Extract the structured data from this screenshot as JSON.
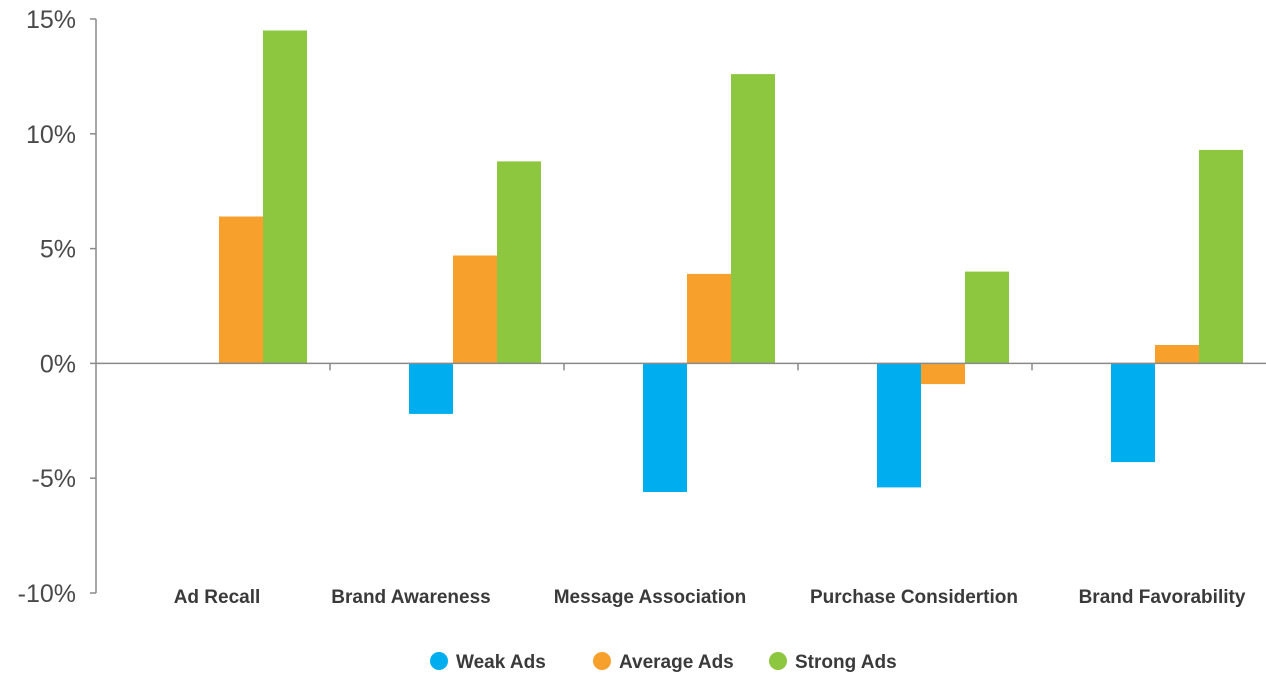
{
  "chart_data": {
    "type": "bar",
    "categories": [
      "Ad Recall",
      "Brand Awareness",
      "Message Association",
      "Purchase Considertion",
      "Brand Favorability"
    ],
    "series": [
      {
        "name": "Weak Ads",
        "color": "#00aeef",
        "values": [
          0,
          -2.2,
          -5.6,
          -5.4,
          -4.3
        ]
      },
      {
        "name": "Average Ads",
        "color": "#f7a12c",
        "values": [
          6.4,
          4.7,
          3.9,
          -0.9,
          0.8
        ]
      },
      {
        "name": "Strong Ads",
        "color": "#8dc63f",
        "values": [
          14.5,
          8.8,
          12.6,
          4.0,
          9.3
        ]
      }
    ],
    "yticks": [
      "15%",
      "10%",
      "5%",
      "0%",
      "-5%",
      "-10%"
    ],
    "ytick_values": [
      15,
      10,
      5,
      0,
      -5,
      -10
    ],
    "ylim": [
      -10,
      15
    ],
    "title": "",
    "xlabel": "",
    "ylabel": "",
    "grid": false,
    "legend_position": "bottom-center"
  }
}
